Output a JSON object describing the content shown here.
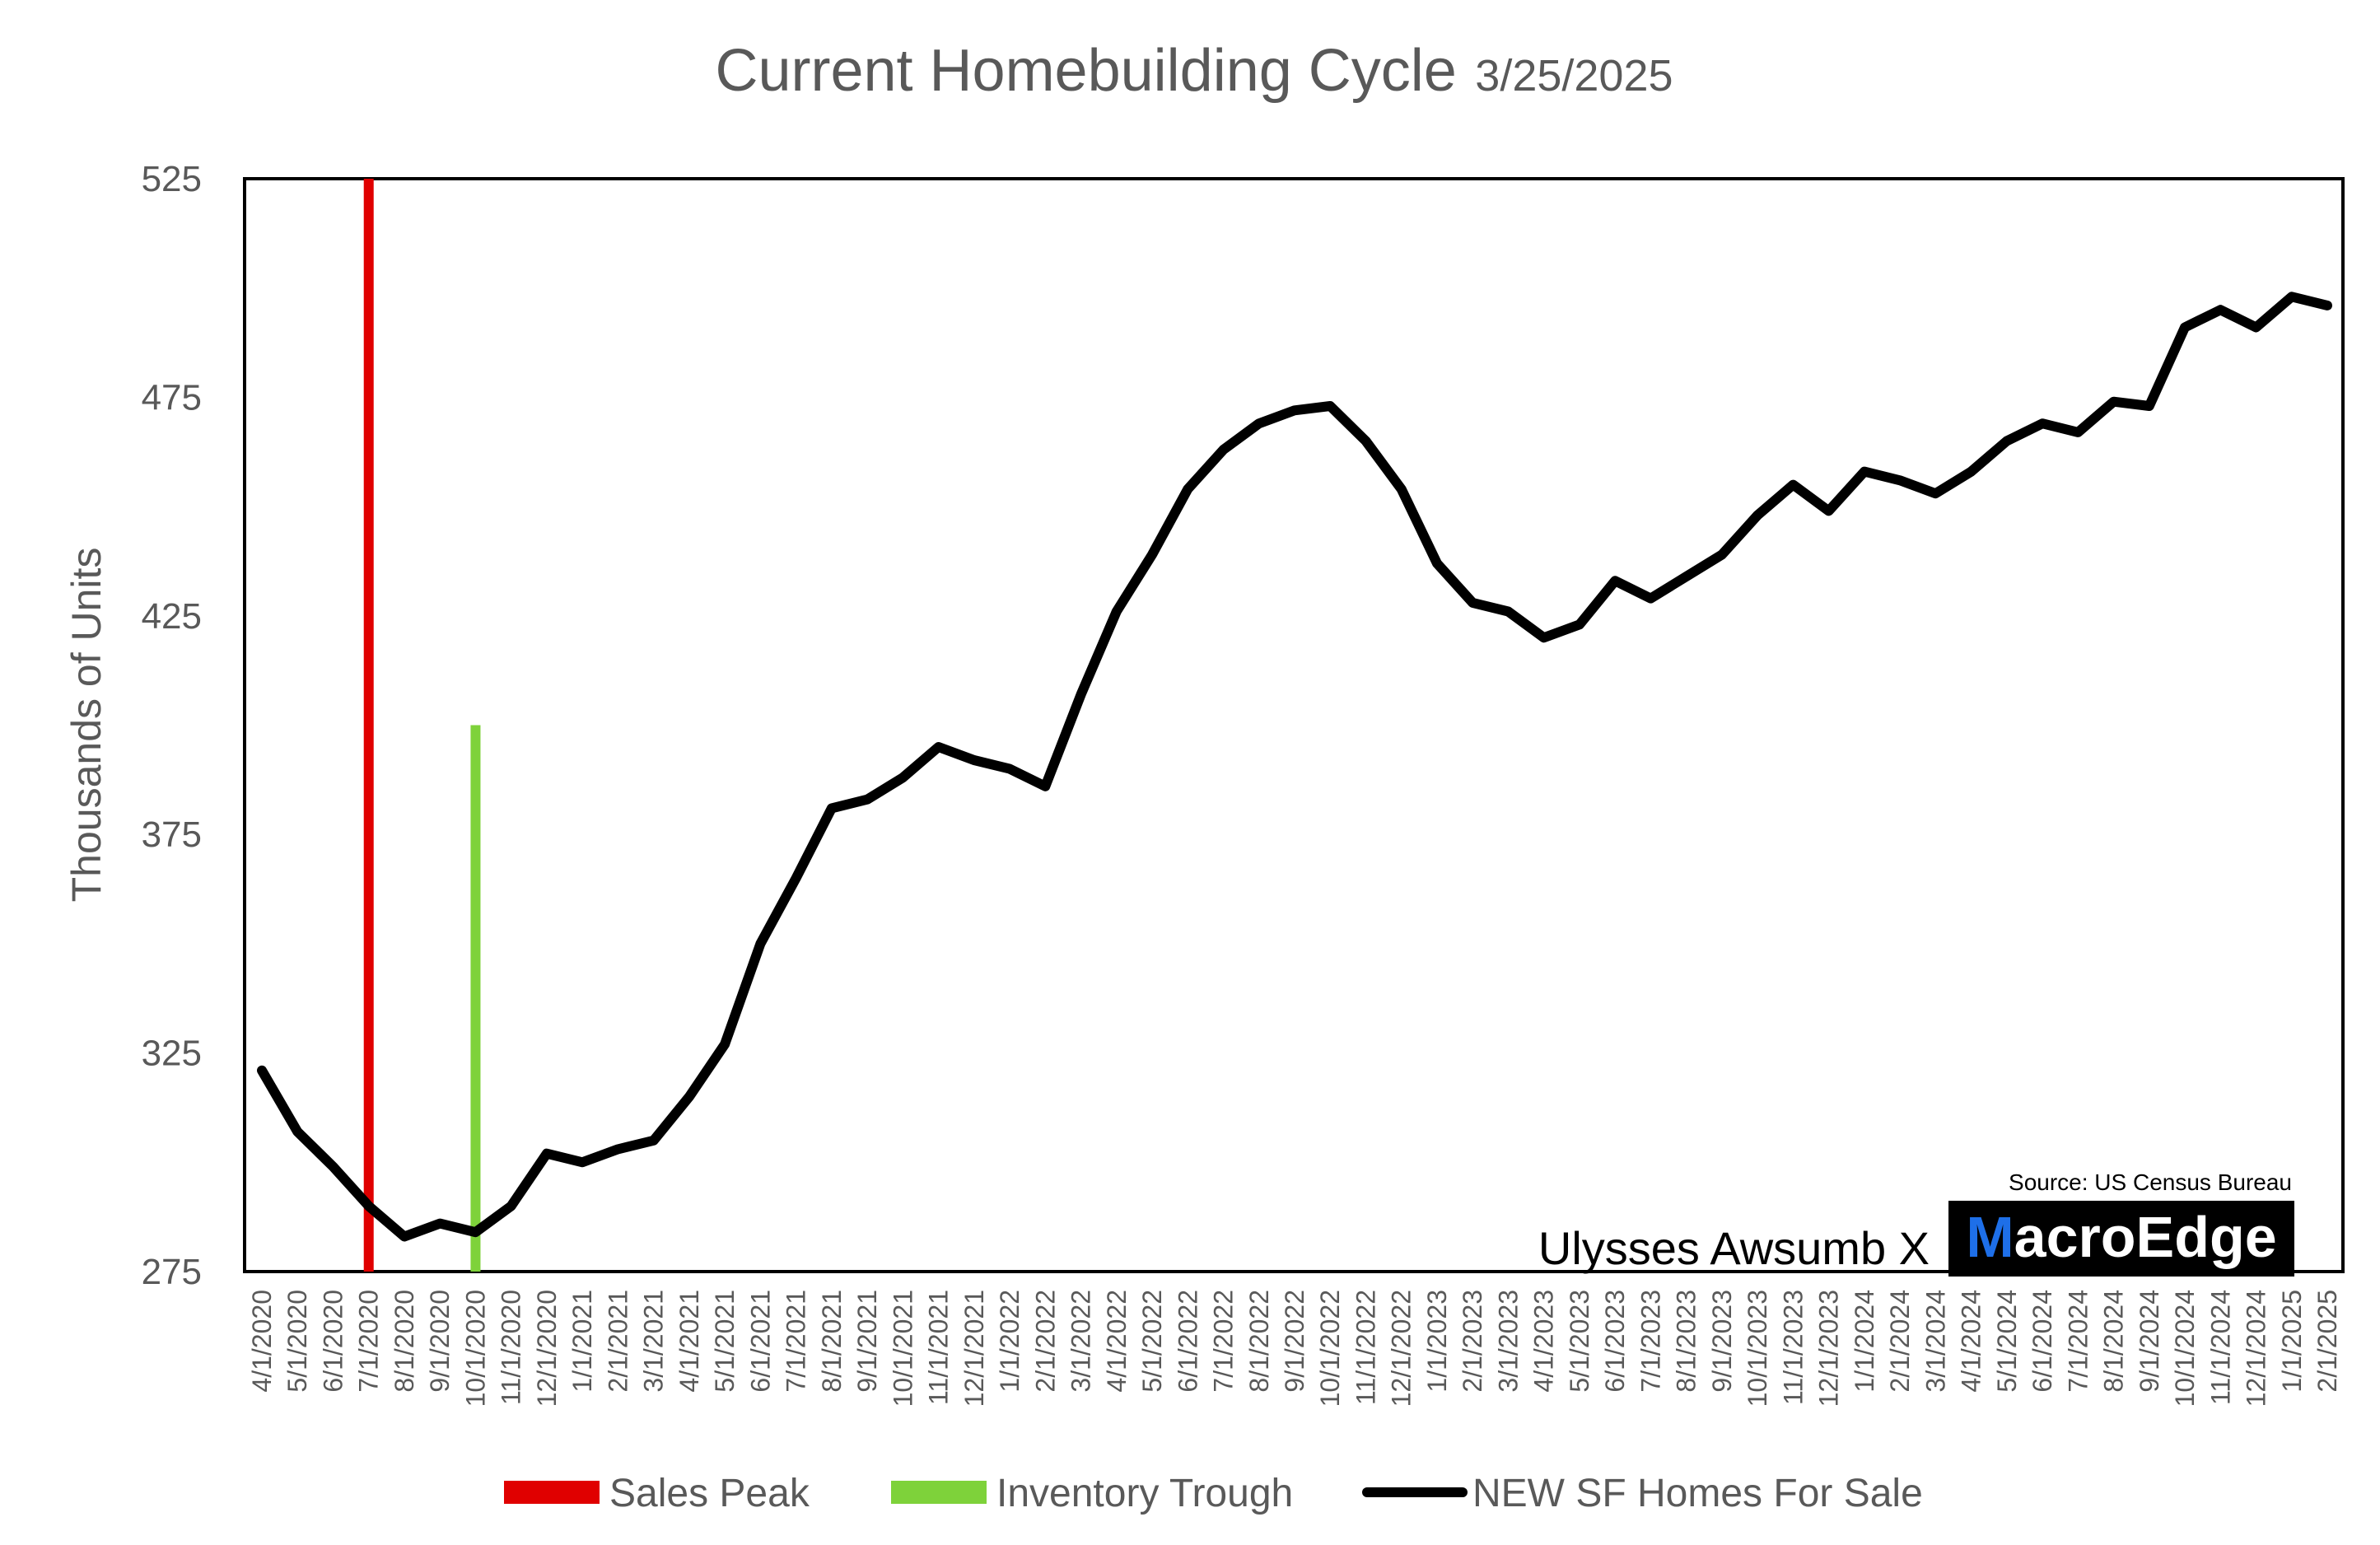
{
  "chart_data": {
    "type": "line",
    "title": "Current Homebuilding Cycle",
    "subtitle": "3/25/2025",
    "ylabel": "Thousands of Units",
    "xlabel": "",
    "ylim": [
      275,
      525
    ],
    "yticks": [
      275,
      325,
      375,
      425,
      475,
      525
    ],
    "grid": false,
    "legend_position": "bottom",
    "categories": [
      "4/1/2020",
      "5/1/2020",
      "6/1/2020",
      "7/1/2020",
      "8/1/2020",
      "9/1/2020",
      "10/1/2020",
      "11/1/2020",
      "12/1/2020",
      "1/1/2021",
      "2/1/2021",
      "3/1/2021",
      "4/1/2021",
      "5/1/2021",
      "6/1/2021",
      "7/1/2021",
      "8/1/2021",
      "9/1/2021",
      "10/1/2021",
      "11/1/2021",
      "12/1/2021",
      "1/1/2022",
      "2/1/2022",
      "3/1/2022",
      "4/1/2022",
      "5/1/2022",
      "6/1/2022",
      "7/1/2022",
      "8/1/2022",
      "9/1/2022",
      "10/1/2022",
      "11/1/2022",
      "12/1/2022",
      "1/1/2023",
      "2/1/2023",
      "3/1/2023",
      "4/1/2023",
      "5/1/2023",
      "6/1/2023",
      "7/1/2023",
      "8/1/2023",
      "9/1/2023",
      "10/1/2023",
      "11/1/2023",
      "12/1/2023",
      "1/1/2024",
      "2/1/2024",
      "3/1/2024",
      "4/1/2024",
      "5/1/2024",
      "6/1/2024",
      "7/1/2024",
      "8/1/2024",
      "9/1/2024",
      "10/1/2024",
      "11/1/2024",
      "12/1/2024",
      "1/1/2025",
      "2/1/2025"
    ],
    "series": [
      {
        "name": "NEW SF Homes For Sale",
        "color": "#000000",
        "values": [
          321,
          307,
          299,
          290,
          283,
          286,
          284,
          290,
          302,
          300,
          303,
          305,
          315,
          327,
          350,
          365,
          381,
          383,
          388,
          395,
          392,
          390,
          386,
          407,
          426,
          439,
          454,
          463,
          469,
          472,
          473,
          465,
          454,
          437,
          428,
          426,
          420,
          423,
          433,
          429,
          434,
          439,
          448,
          455,
          449,
          458,
          456,
          453,
          458,
          465,
          469,
          467,
          474,
          473,
          491,
          495,
          491,
          498,
          496
        ]
      }
    ],
    "markers": [
      {
        "name": "Sales Peak",
        "color": "#e00000",
        "x": "7/1/2020",
        "y_from": 275,
        "y_to": 525
      },
      {
        "name": "Inventory Trough",
        "color": "#7ed23a",
        "x": "10/1/2020",
        "y_from": 275,
        "y_to": 400
      }
    ],
    "annotations": {
      "credit": "Ulysses Awsumb X",
      "source": "Source: US Census Bureau",
      "logo_m": "M",
      "logo_rest": "acroEdge"
    }
  }
}
